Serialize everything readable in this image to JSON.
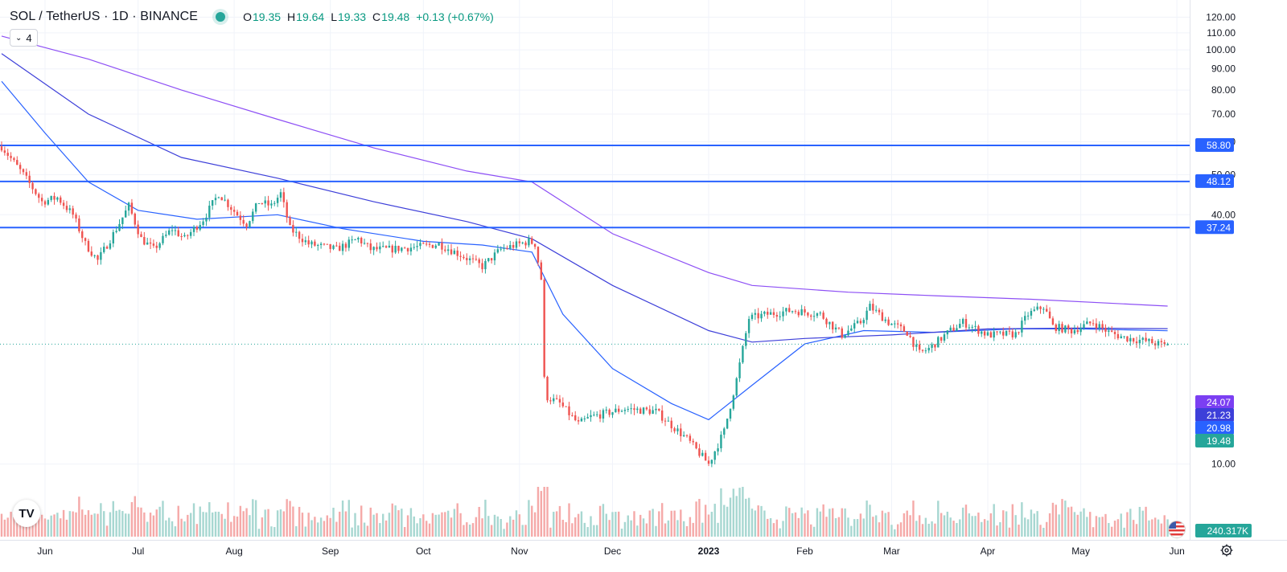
{
  "header": {
    "symbol": "SOL / TetherUS · 1D · BINANCE",
    "open_label": "O",
    "open": "19.35",
    "high_label": "H",
    "high": "19.64",
    "low_label": "L",
    "low": "19.33",
    "close_label": "C",
    "close": "19.48",
    "change": "+0.13 (+0.67%)",
    "indicator_toggle_count": "4"
  },
  "colors": {
    "up": "#26a69a",
    "down": "#ef5350",
    "vol_up": "#a7d7d1",
    "vol_down": "#f5a9a8",
    "hline": "#2962ff",
    "ma_short": "#2962ff",
    "ma_mid": "#3d3fd9",
    "ma_long": "#8d4ff5",
    "ma_long_label": "#7b3ff2",
    "grid": "#f0f3fa"
  },
  "chart_data": {
    "type": "candlestick",
    "title": "SOL / TetherUS · 1D · BINANCE",
    "y_scale": "log",
    "ylim": [
      8.5,
      124
    ],
    "y_ticks": [
      "120.00",
      "110.00",
      "100.00",
      "90.00",
      "80.00",
      "70.00",
      "60.00",
      "50.00",
      "40.00",
      "10.00"
    ],
    "x_range": [
      "2022-05-18",
      "2023-06-02"
    ],
    "x_ticks": [
      {
        "date": "2022-06-01",
        "label": "Jun"
      },
      {
        "date": "2022-07-01",
        "label": "Jul"
      },
      {
        "date": "2022-08-01",
        "label": "Aug"
      },
      {
        "date": "2022-09-01",
        "label": "Sep"
      },
      {
        "date": "2022-10-01",
        "label": "Oct"
      },
      {
        "date": "2022-11-01",
        "label": "Nov"
      },
      {
        "date": "2022-12-01",
        "label": "Dec"
      },
      {
        "date": "2023-01-01",
        "label": "2023",
        "bold": true
      },
      {
        "date": "2023-02-01",
        "label": "Feb"
      },
      {
        "date": "2023-03-01",
        "label": "Mar"
      },
      {
        "date": "2023-04-01",
        "label": "Apr"
      },
      {
        "date": "2023-05-01",
        "label": "May"
      },
      {
        "date": "2023-06-01",
        "label": "Jun"
      }
    ],
    "price_anchors": [
      [
        "2022-05-18",
        58.5
      ],
      [
        "2022-05-25",
        50
      ],
      [
        "2022-05-31",
        43
      ],
      [
        "2022-06-05",
        44
      ],
      [
        "2022-06-10",
        40
      ],
      [
        "2022-06-14",
        34
      ],
      [
        "2022-06-18",
        31
      ],
      [
        "2022-06-24",
        37
      ],
      [
        "2022-06-28",
        42
      ],
      [
        "2022-07-02",
        35
      ],
      [
        "2022-07-06",
        33
      ],
      [
        "2022-07-12",
        37
      ],
      [
        "2022-07-16",
        35
      ],
      [
        "2022-07-22",
        39
      ],
      [
        "2022-07-27",
        45
      ],
      [
        "2022-08-02",
        40
      ],
      [
        "2022-08-05",
        38
      ],
      [
        "2022-08-09",
        43
      ],
      [
        "2022-08-13",
        42
      ],
      [
        "2022-08-16",
        45
      ],
      [
        "2022-08-19",
        37
      ],
      [
        "2022-08-25",
        34
      ],
      [
        "2022-09-03",
        33
      ],
      [
        "2022-09-10",
        35
      ],
      [
        "2022-09-14",
        33
      ],
      [
        "2022-09-20",
        33
      ],
      [
        "2022-09-30",
        33.5
      ],
      [
        "2022-10-06",
        34
      ],
      [
        "2022-10-13",
        32
      ],
      [
        "2022-10-20",
        30
      ],
      [
        "2022-10-26",
        33
      ],
      [
        "2022-11-04",
        34.5
      ],
      [
        "2022-11-06",
        34
      ],
      [
        "2022-11-08",
        28
      ],
      [
        "2022-11-09",
        16
      ],
      [
        "2022-11-10",
        14.5
      ],
      [
        "2022-11-14",
        14
      ],
      [
        "2022-11-20",
        12.5
      ],
      [
        "2022-11-24",
        13
      ],
      [
        "2022-12-05",
        13.6
      ],
      [
        "2022-12-15",
        13.4
      ],
      [
        "2022-12-25",
        11.5
      ],
      [
        "2023-01-01",
        10
      ],
      [
        "2023-01-06",
        12
      ],
      [
        "2023-01-10",
        16
      ],
      [
        "2023-01-14",
        22.5
      ],
      [
        "2023-01-20",
        23
      ],
      [
        "2023-01-28",
        23.5
      ],
      [
        "2023-02-06",
        23
      ],
      [
        "2023-02-13",
        20.5
      ],
      [
        "2023-02-19",
        22
      ],
      [
        "2023-02-22",
        24
      ],
      [
        "2023-02-28",
        22
      ],
      [
        "2023-03-06",
        20.8
      ],
      [
        "2023-03-10",
        18.5
      ],
      [
        "2023-03-13",
        19
      ],
      [
        "2023-03-20",
        21
      ],
      [
        "2023-03-24",
        22
      ],
      [
        "2023-04-01",
        20.5
      ],
      [
        "2023-04-10",
        20.6
      ],
      [
        "2023-04-14",
        23
      ],
      [
        "2023-04-19",
        24
      ],
      [
        "2023-04-22",
        21.5
      ],
      [
        "2023-04-28",
        21
      ],
      [
        "2023-05-05",
        22
      ],
      [
        "2023-05-10",
        20.8
      ],
      [
        "2023-05-15",
        20.2
      ],
      [
        "2023-05-22",
        19.8
      ],
      [
        "2023-05-28",
        19.35
      ],
      [
        "2023-05-29",
        19.48
      ]
    ],
    "moving_averages": [
      {
        "color_key": "ma_short",
        "points": [
          [
            "2022-05-18",
            84
          ],
          [
            "2022-06-01",
            63
          ],
          [
            "2022-06-15",
            48
          ],
          [
            "2022-07-01",
            41
          ],
          [
            "2022-07-20",
            39
          ],
          [
            "2022-08-15",
            40
          ],
          [
            "2022-09-05",
            37
          ],
          [
            "2022-10-01",
            34.5
          ],
          [
            "2022-10-20",
            33.8
          ],
          [
            "2022-11-05",
            32.5
          ],
          [
            "2022-11-15",
            23
          ],
          [
            "2022-12-01",
            17
          ],
          [
            "2022-12-20",
            14
          ],
          [
            "2023-01-01",
            12.8
          ],
          [
            "2023-01-15",
            15.5
          ],
          [
            "2023-02-01",
            19.5
          ],
          [
            "2023-02-20",
            21
          ],
          [
            "2023-03-15",
            20.8
          ],
          [
            "2023-04-10",
            21.2
          ],
          [
            "2023-05-01",
            21.2
          ],
          [
            "2023-05-29",
            20.98
          ]
        ]
      },
      {
        "color_key": "ma_mid",
        "points": [
          [
            "2022-05-18",
            98
          ],
          [
            "2022-06-15",
            70
          ],
          [
            "2022-07-15",
            55
          ],
          [
            "2022-08-15",
            49
          ],
          [
            "2022-09-15",
            43
          ],
          [
            "2022-10-15",
            38.5
          ],
          [
            "2022-11-05",
            35
          ],
          [
            "2022-12-01",
            27
          ],
          [
            "2023-01-01",
            21
          ],
          [
            "2023-01-15",
            19.7
          ],
          [
            "2023-02-01",
            20.1
          ],
          [
            "2023-03-01",
            20.5
          ],
          [
            "2023-04-01",
            21.2
          ],
          [
            "2023-05-01",
            21.3
          ],
          [
            "2023-05-29",
            21.23
          ]
        ]
      },
      {
        "color_key": "ma_long",
        "points": [
          [
            "2022-05-18",
            108
          ],
          [
            "2022-06-15",
            95
          ],
          [
            "2022-07-15",
            80
          ],
          [
            "2022-08-15",
            68
          ],
          [
            "2022-09-15",
            58
          ],
          [
            "2022-10-15",
            51
          ],
          [
            "2022-11-05",
            48
          ],
          [
            "2022-12-01",
            36
          ],
          [
            "2023-01-01",
            29
          ],
          [
            "2023-01-15",
            27
          ],
          [
            "2023-02-15",
            26
          ],
          [
            "2023-03-15",
            25.5
          ],
          [
            "2023-04-15",
            25
          ],
          [
            "2023-05-29",
            24.07
          ]
        ]
      }
    ],
    "horizontal_levels": [
      58.8,
      48.12,
      37.24
    ],
    "price_labels": [
      {
        "text": "58.80",
        "color_key": "hline"
      },
      {
        "text": "48.12",
        "color_key": "hline"
      },
      {
        "text": "37.24",
        "color_key": "hline"
      },
      {
        "text": "24.07",
        "color_key": "ma_long_label"
      },
      {
        "text": "21.23",
        "color_key": "ma_mid"
      },
      {
        "text": "20.98",
        "color_key": "ma_short"
      },
      {
        "text": "19.48",
        "color_key": "up"
      }
    ],
    "last_price": 19.48,
    "volume_label": "240.317K"
  }
}
